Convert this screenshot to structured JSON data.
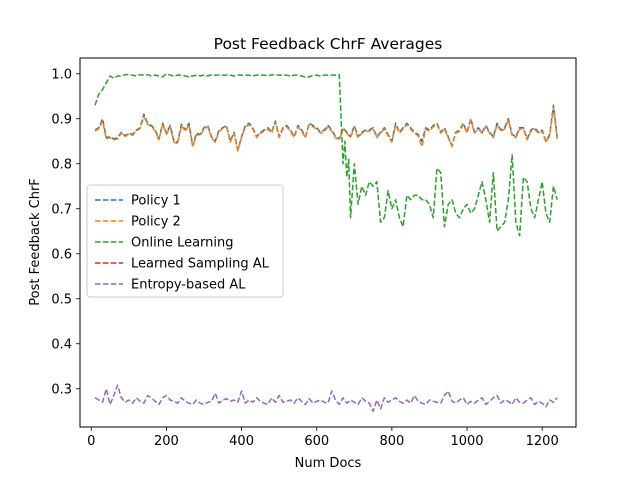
{
  "chart_data": {
    "type": "line",
    "title": "Post Feedback ChrF Averages",
    "xlabel": "Num Docs",
    "ylabel": "Post Feedback ChrF",
    "xlim": [
      -30,
      1290
    ],
    "ylim": [
      0.215,
      1.035
    ],
    "xticks": [
      0,
      200,
      400,
      600,
      800,
      1000,
      1200
    ],
    "yticks": [
      0.3,
      0.4,
      0.5,
      0.6,
      0.7,
      0.8,
      0.9,
      1.0
    ],
    "grid": false,
    "legend_position": "center-left",
    "series": [
      {
        "name": "Policy 1",
        "color": "#1f77b4",
        "style": "dashed",
        "x": [
          10,
          20,
          30,
          40,
          50,
          60,
          70,
          80,
          90,
          100,
          110,
          120,
          130,
          140,
          150,
          160,
          170,
          180,
          190,
          200,
          210,
          220,
          230,
          240,
          250,
          260,
          270,
          280,
          290,
          300,
          310,
          320,
          330,
          340,
          350,
          360,
          370,
          380,
          390,
          400,
          410,
          420,
          430,
          440,
          450,
          460,
          470,
          480,
          490,
          500,
          510,
          520,
          530,
          540,
          550,
          560,
          570,
          580,
          590,
          600,
          610,
          620,
          630,
          640,
          650,
          660,
          670,
          680,
          690,
          700,
          710,
          720,
          730,
          740,
          750,
          760,
          770,
          780,
          790,
          800,
          810,
          820,
          830,
          840,
          850,
          860,
          870,
          880,
          890,
          900,
          910,
          920,
          930,
          940,
          950,
          960,
          970,
          980,
          990,
          1000,
          1010,
          1020,
          1030,
          1040,
          1050,
          1060,
          1070,
          1080,
          1090,
          1100,
          1110,
          1120,
          1130,
          1140,
          1150,
          1160,
          1170,
          1180,
          1190,
          1200,
          1210,
          1220,
          1230,
          1240
        ],
        "y": [
          0.875,
          0.88,
          0.9,
          0.858,
          0.86,
          0.855,
          0.858,
          0.87,
          0.862,
          0.868,
          0.865,
          0.875,
          0.88,
          0.91,
          0.89,
          0.885,
          0.875,
          0.855,
          0.89,
          0.868,
          0.885,
          0.85,
          0.848,
          0.888,
          0.875,
          0.89,
          0.84,
          0.868,
          0.865,
          0.88,
          0.885,
          0.86,
          0.85,
          0.875,
          0.88,
          0.885,
          0.85,
          0.87,
          0.83,
          0.86,
          0.885,
          0.89,
          0.88,
          0.86,
          0.87,
          0.875,
          0.88,
          0.87,
          0.895,
          0.86,
          0.88,
          0.885,
          0.875,
          0.86,
          0.885,
          0.875,
          0.86,
          0.89,
          0.885,
          0.88,
          0.87,
          0.875,
          0.885,
          0.875,
          0.86,
          0.855,
          0.88,
          0.87,
          0.86,
          0.885,
          0.86,
          0.87,
          0.875,
          0.875,
          0.88,
          0.86,
          0.87,
          0.88,
          0.865,
          0.85,
          0.89,
          0.87,
          0.88,
          0.89,
          0.88,
          0.87,
          0.865,
          0.85,
          0.88,
          0.875,
          0.885,
          0.89,
          0.87,
          0.88,
          0.86,
          0.84,
          0.87,
          0.875,
          0.89,
          0.87,
          0.9,
          0.87,
          0.88,
          0.87,
          0.885,
          0.87,
          0.86,
          0.89,
          0.875,
          0.88,
          0.9,
          0.865,
          0.86,
          0.88,
          0.88,
          0.855,
          0.875,
          0.88,
          0.87,
          0.875,
          0.85,
          0.865,
          0.93,
          0.86
        ]
      },
      {
        "name": "Policy 2",
        "color": "#ff7f0e",
        "style": "dashed",
        "x": [
          10,
          20,
          30,
          40,
          50,
          60,
          70,
          80,
          90,
          100,
          110,
          120,
          130,
          140,
          150,
          160,
          170,
          180,
          190,
          200,
          210,
          220,
          230,
          240,
          250,
          260,
          270,
          280,
          290,
          300,
          310,
          320,
          330,
          340,
          350,
          360,
          370,
          380,
          390,
          400,
          410,
          420,
          430,
          440,
          450,
          460,
          470,
          480,
          490,
          500,
          510,
          520,
          530,
          540,
          550,
          560,
          570,
          580,
          590,
          600,
          610,
          620,
          630,
          640,
          650,
          660,
          670,
          680,
          690,
          700,
          710,
          720,
          730,
          740,
          750,
          760,
          770,
          780,
          790,
          800,
          810,
          820,
          830,
          840,
          850,
          860,
          870,
          880,
          890,
          900,
          910,
          920,
          930,
          940,
          950,
          960,
          970,
          980,
          990,
          1000,
          1010,
          1020,
          1030,
          1040,
          1050,
          1060,
          1070,
          1080,
          1090,
          1100,
          1110,
          1120,
          1130,
          1140,
          1150,
          1160,
          1170,
          1180,
          1190,
          1200,
          1210,
          1220,
          1230,
          1240
        ],
        "y": [
          0.872,
          0.878,
          0.895,
          0.855,
          0.858,
          0.853,
          0.855,
          0.868,
          0.86,
          0.866,
          0.863,
          0.873,
          0.878,
          0.905,
          0.888,
          0.882,
          0.873,
          0.853,
          0.888,
          0.865,
          0.882,
          0.848,
          0.845,
          0.885,
          0.872,
          0.887,
          0.838,
          0.865,
          0.862,
          0.878,
          0.882,
          0.858,
          0.848,
          0.872,
          0.878,
          0.882,
          0.848,
          0.868,
          0.828,
          0.858,
          0.882,
          0.887,
          0.877,
          0.858,
          0.868,
          0.872,
          0.877,
          0.868,
          0.892,
          0.858,
          0.877,
          0.882,
          0.872,
          0.858,
          0.882,
          0.872,
          0.858,
          0.887,
          0.882,
          0.877,
          0.868,
          0.872,
          0.882,
          0.872,
          0.858,
          0.853,
          0.877,
          0.868,
          0.858,
          0.882,
          0.858,
          0.868,
          0.872,
          0.872,
          0.877,
          0.858,
          0.868,
          0.877,
          0.862,
          0.848,
          0.887,
          0.868,
          0.877,
          0.887,
          0.877,
          0.868,
          0.862,
          0.838,
          0.877,
          0.872,
          0.882,
          0.887,
          0.868,
          0.877,
          0.858,
          0.838,
          0.868,
          0.872,
          0.887,
          0.868,
          0.897,
          0.868,
          0.877,
          0.868,
          0.882,
          0.868,
          0.858,
          0.887,
          0.872,
          0.877,
          0.897,
          0.862,
          0.858,
          0.877,
          0.877,
          0.853,
          0.872,
          0.877,
          0.868,
          0.872,
          0.848,
          0.862,
          0.925,
          0.855
        ]
      },
      {
        "name": "Online Learning",
        "color": "#2ca02c",
        "style": "dashed",
        "x": [
          10,
          20,
          30,
          40,
          50,
          60,
          70,
          80,
          90,
          100,
          110,
          120,
          130,
          140,
          150,
          160,
          170,
          180,
          190,
          200,
          210,
          220,
          230,
          240,
          250,
          260,
          270,
          280,
          290,
          300,
          310,
          320,
          330,
          340,
          350,
          360,
          370,
          380,
          390,
          400,
          410,
          420,
          430,
          440,
          450,
          460,
          470,
          480,
          490,
          500,
          510,
          520,
          530,
          540,
          550,
          560,
          570,
          580,
          590,
          600,
          610,
          620,
          630,
          640,
          650,
          660,
          670,
          675,
          680,
          685,
          690,
          700,
          710,
          720,
          730,
          740,
          750,
          760,
          770,
          780,
          790,
          800,
          810,
          820,
          830,
          840,
          850,
          860,
          870,
          880,
          890,
          900,
          910,
          920,
          930,
          940,
          950,
          960,
          970,
          980,
          990,
          1000,
          1010,
          1020,
          1030,
          1040,
          1050,
          1060,
          1070,
          1080,
          1090,
          1100,
          1110,
          1120,
          1130,
          1140,
          1150,
          1160,
          1170,
          1180,
          1190,
          1200,
          1210,
          1220,
          1230,
          1240
        ],
        "y": [
          0.93,
          0.955,
          0.965,
          0.98,
          0.995,
          0.99,
          0.995,
          0.995,
          0.998,
          0.998,
          0.997,
          0.995,
          0.998,
          0.997,
          0.998,
          0.995,
          0.997,
          0.995,
          0.993,
          1.0,
          0.997,
          0.995,
          0.997,
          0.997,
          0.995,
          0.993,
          0.995,
          0.997,
          0.995,
          0.997,
          0.995,
          0.998,
          0.997,
          0.997,
          0.997,
          0.997,
          0.997,
          0.995,
          0.997,
          0.997,
          0.997,
          0.997,
          0.995,
          0.997,
          0.997,
          0.997,
          0.995,
          0.998,
          0.997,
          0.997,
          0.997,
          0.997,
          0.995,
          0.997,
          0.997,
          0.995,
          0.992,
          0.993,
          0.997,
          0.997,
          0.995,
          0.997,
          0.997,
          0.997,
          0.997,
          0.998,
          0.8,
          0.85,
          0.77,
          0.81,
          0.68,
          0.8,
          0.71,
          0.75,
          0.73,
          0.76,
          0.75,
          0.76,
          0.67,
          0.68,
          0.74,
          0.7,
          0.72,
          0.68,
          0.66,
          0.73,
          0.72,
          0.73,
          0.73,
          0.72,
          0.72,
          0.71,
          0.68,
          0.79,
          0.78,
          0.66,
          0.71,
          0.72,
          0.69,
          0.68,
          0.7,
          0.71,
          0.69,
          0.7,
          0.73,
          0.76,
          0.72,
          0.67,
          0.78,
          0.65,
          0.66,
          0.67,
          0.72,
          0.82,
          0.67,
          0.64,
          0.77,
          0.76,
          0.7,
          0.68,
          0.72,
          0.76,
          0.69,
          0.67,
          0.75,
          0.72
        ]
      },
      {
        "name": "Learned Sampling AL",
        "color": "#d62728",
        "style": "dashed",
        "x": [],
        "y": []
      },
      {
        "name": "Entropy-based AL",
        "color": "#9467bd",
        "style": "dashed",
        "x": [
          10,
          20,
          30,
          40,
          50,
          60,
          70,
          80,
          90,
          100,
          110,
          120,
          130,
          140,
          150,
          160,
          170,
          180,
          190,
          200,
          210,
          220,
          230,
          240,
          250,
          260,
          270,
          280,
          290,
          300,
          310,
          320,
          330,
          340,
          350,
          360,
          370,
          380,
          390,
          400,
          410,
          420,
          430,
          440,
          450,
          460,
          470,
          480,
          490,
          500,
          510,
          520,
          530,
          540,
          550,
          560,
          570,
          580,
          590,
          600,
          610,
          620,
          630,
          640,
          650,
          660,
          670,
          680,
          690,
          700,
          710,
          720,
          730,
          740,
          750,
          760,
          770,
          780,
          790,
          800,
          810,
          820,
          830,
          840,
          850,
          860,
          870,
          880,
          890,
          900,
          910,
          920,
          930,
          940,
          950,
          960,
          970,
          980,
          990,
          1000,
          1010,
          1020,
          1030,
          1040,
          1050,
          1060,
          1070,
          1080,
          1090,
          1100,
          1110,
          1120,
          1130,
          1140,
          1150,
          1160,
          1170,
          1180,
          1190,
          1200,
          1210,
          1220,
          1230,
          1240
        ],
        "y": [
          0.28,
          0.275,
          0.27,
          0.3,
          0.265,
          0.285,
          0.308,
          0.28,
          0.27,
          0.275,
          0.268,
          0.28,
          0.272,
          0.268,
          0.285,
          0.28,
          0.272,
          0.265,
          0.28,
          0.285,
          0.275,
          0.272,
          0.268,
          0.28,
          0.272,
          0.268,
          0.265,
          0.275,
          0.268,
          0.265,
          0.27,
          0.272,
          0.29,
          0.268,
          0.275,
          0.278,
          0.272,
          0.275,
          0.27,
          0.295,
          0.268,
          0.275,
          0.27,
          0.28,
          0.272,
          0.268,
          0.265,
          0.28,
          0.27,
          0.285,
          0.27,
          0.272,
          0.275,
          0.268,
          0.28,
          0.272,
          0.265,
          0.278,
          0.268,
          0.272,
          0.275,
          0.27,
          0.268,
          0.295,
          0.275,
          0.265,
          0.28,
          0.268,
          0.275,
          0.27,
          0.265,
          0.28,
          0.272,
          0.268,
          0.25,
          0.275,
          0.255,
          0.28,
          0.27,
          0.275,
          0.28,
          0.272,
          0.268,
          0.275,
          0.268,
          0.285,
          0.272,
          0.268,
          0.265,
          0.275,
          0.272,
          0.27,
          0.268,
          0.285,
          0.295,
          0.272,
          0.268,
          0.275,
          0.28,
          0.265,
          0.272,
          0.268,
          0.275,
          0.28,
          0.265,
          0.272,
          0.28,
          0.285,
          0.268,
          0.275,
          0.272,
          0.265,
          0.28,
          0.27,
          0.268,
          0.275,
          0.28,
          0.265,
          0.272,
          0.268,
          0.26,
          0.275,
          0.27,
          0.28
        ]
      }
    ]
  }
}
